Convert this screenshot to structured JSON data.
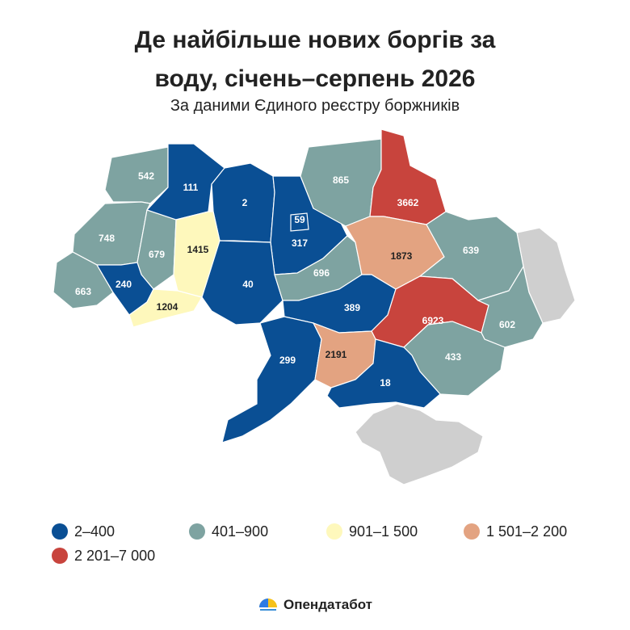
{
  "title_line1": "Де найбільше нових боргів за",
  "title_line2": "воду, січень–серпень 2026",
  "subtitle": "За даними Єдиного реєстру боржників",
  "colors": {
    "c1": "#0a4f94",
    "c2": "#7ea3a1",
    "c3": "#fef8bc",
    "c4": "#e3a381",
    "c5": "#c8443d",
    "no_data": "#cfcfcf"
  },
  "legend": [
    {
      "label": "2–400",
      "color": "#0a4f94"
    },
    {
      "label": "401–900",
      "color": "#7ea3a1"
    },
    {
      "label": "901–1 500",
      "color": "#fef8bc"
    },
    {
      "label": "1 501–2 200",
      "color": "#e3a381"
    },
    {
      "label": "2 201–7 000",
      "color": "#c8443d"
    }
  ],
  "regions": [
    {
      "id": "volyn",
      "value": "542"
    },
    {
      "id": "rivne",
      "value": "111"
    },
    {
      "id": "zhytomyr",
      "value": "2"
    },
    {
      "id": "kyiv-city",
      "value": "59"
    },
    {
      "id": "kyiv-oblast",
      "value": "317"
    },
    {
      "id": "chernihiv",
      "value": "865"
    },
    {
      "id": "sumy",
      "value": "3662"
    },
    {
      "id": "lviv",
      "value": "748"
    },
    {
      "id": "ternopil",
      "value": "679"
    },
    {
      "id": "khmelnytskyi",
      "value": "1415"
    },
    {
      "id": "zakarpattia",
      "value": "663"
    },
    {
      "id": "ivano-frankivsk",
      "value": "240"
    },
    {
      "id": "chernivtsi",
      "value": "1204"
    },
    {
      "id": "vinnytsia",
      "value": "40"
    },
    {
      "id": "cherkasy",
      "value": "696"
    },
    {
      "id": "poltava",
      "value": "1873"
    },
    {
      "id": "kharkiv",
      "value": "639"
    },
    {
      "id": "kirovohrad",
      "value": "389"
    },
    {
      "id": "dnipro",
      "value": "6923"
    },
    {
      "id": "luhansk",
      "value": "602"
    },
    {
      "id": "donetsk",
      "value": "433"
    },
    {
      "id": "odesa",
      "value": "299"
    },
    {
      "id": "mykolaiv",
      "value": "2191"
    },
    {
      "id": "kherson",
      "value": "18"
    },
    {
      "id": "zaporizhzhia",
      "value": ""
    }
  ],
  "brand": "Опендатабот"
}
